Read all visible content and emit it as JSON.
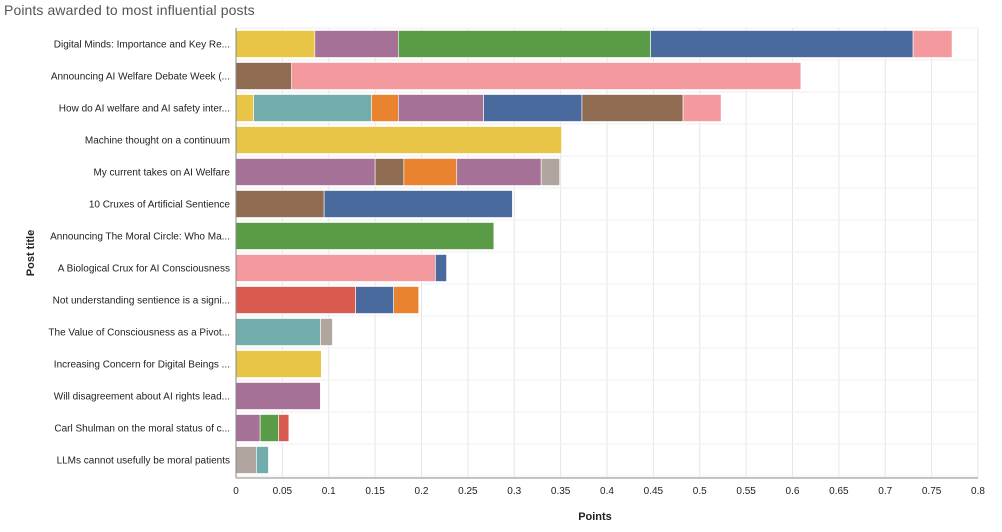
{
  "chart_data": {
    "type": "bar",
    "orientation": "horizontal",
    "stacked": true,
    "title": "Points awarded to most influential posts",
    "xlabel": "Points",
    "ylabel": "Post title",
    "xlim": [
      0,
      0.8
    ],
    "x_ticks": [
      "0",
      "0.05",
      "0.1",
      "0.15",
      "0.2",
      "0.25",
      "0.3",
      "0.35",
      "0.4",
      "0.45",
      "0.5",
      "0.55",
      "0.6",
      "0.65",
      "0.7",
      "0.75",
      "0.8"
    ],
    "grid": true,
    "categories": [
      "Digital Minds: Importance and Key Re...",
      "Announcing AI Welfare Debate Week (...",
      "How do AI welfare and AI safety inter...",
      "Machine thought on a continuum",
      "My current takes on AI Welfare",
      "10 Cruxes of Artificial Sentience",
      "Announcing The Moral Circle: Who Ma...",
      "A Biological Crux for AI Consciousness",
      "Not understanding sentience is a signi...",
      "The Value of Consciousness as a Pivot...",
      "Increasing Concern for Digital Beings ...",
      "Will disagreement about AI rights lead...",
      "Carl Shulman on the moral status of c...",
      "LLMs cannot usefully be moral patients"
    ],
    "bars": [
      [
        {
          "color": "#E8C547",
          "value": 0.085
        },
        {
          "color": "#A57197",
          "value": 0.09
        },
        {
          "color": "#599B47",
          "value": 0.272
        },
        {
          "color": "#4A6A9D",
          "value": 0.283
        },
        {
          "color": "#F4999E",
          "value": 0.042
        }
      ],
      [
        {
          "color": "#8E6B51",
          "value": 0.06
        },
        {
          "color": "#F4999E",
          "value": 0.549
        }
      ],
      [
        {
          "color": "#E8C547",
          "value": 0.019
        },
        {
          "color": "#73ADAB",
          "value": 0.127
        },
        {
          "color": "#EA8330",
          "value": 0.029
        },
        {
          "color": "#A57197",
          "value": 0.092
        },
        {
          "color": "#4A6A9D",
          "value": 0.106
        },
        {
          "color": "#8E6B51",
          "value": 0.109
        },
        {
          "color": "#F4999E",
          "value": 0.041
        }
      ],
      [
        {
          "color": "#E8C547",
          "value": 0.351
        }
      ],
      [
        {
          "color": "#A57197",
          "value": 0.15
        },
        {
          "color": "#8E6B51",
          "value": 0.031
        },
        {
          "color": "#EA8330",
          "value": 0.057
        },
        {
          "color": "#A57197",
          "value": 0.091
        },
        {
          "color": "#B1A69F",
          "value": 0.02
        }
      ],
      [
        {
          "color": "#8E6B51",
          "value": 0.095
        },
        {
          "color": "#4A6A9D",
          "value": 0.203
        }
      ],
      [
        {
          "color": "#599B47",
          "value": 0.278
        }
      ],
      [
        {
          "color": "#F4999E",
          "value": 0.215
        },
        {
          "color": "#4A6A9D",
          "value": 0.012
        }
      ],
      [
        {
          "color": "#D95A4E",
          "value": 0.129
        },
        {
          "color": "#4A6A9D",
          "value": 0.041
        },
        {
          "color": "#EA8330",
          "value": 0.027
        }
      ],
      [
        {
          "color": "#73ADAB",
          "value": 0.091
        },
        {
          "color": "#B1A69F",
          "value": 0.013
        }
      ],
      [
        {
          "color": "#E8C547",
          "value": 0.092
        }
      ],
      [
        {
          "color": "#A57197",
          "value": 0.091
        }
      ],
      [
        {
          "color": "#A57197",
          "value": 0.026
        },
        {
          "color": "#599B47",
          "value": 0.02
        },
        {
          "color": "#D95A4E",
          "value": 0.011
        }
      ],
      [
        {
          "color": "#B1A69F",
          "value": 0.022
        },
        {
          "color": "#73ADAB",
          "value": 0.013
        }
      ]
    ]
  }
}
